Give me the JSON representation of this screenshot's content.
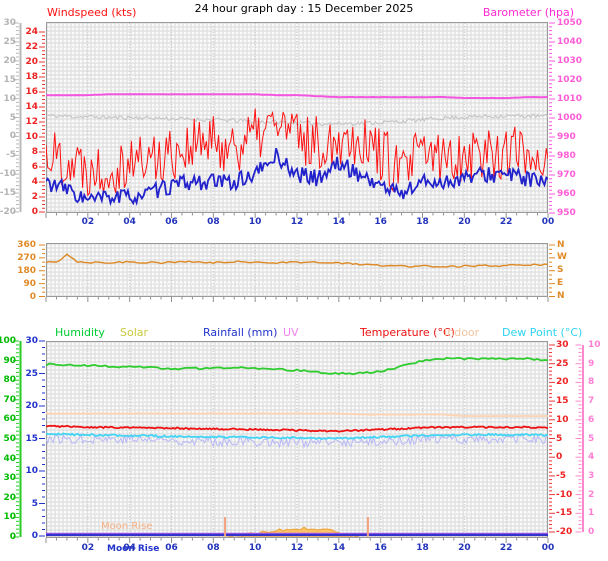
{
  "title": "24 hour graph day : 15 December 2025",
  "panels": {
    "wind": {
      "left_label": "Windspeed (kts)",
      "right_label": "Barometer (hpa)"
    }
  },
  "legend": [
    {
      "label": "Humidity",
      "color": "#00cc33"
    },
    {
      "label": "Solar",
      "color": "#c9c93a"
    },
    {
      "label": "Rainfall (mm)",
      "color": "#2233cc"
    },
    {
      "label": "UV",
      "color": "#ee82ee"
    },
    {
      "label": "Temperature (°C)",
      "color": "#ee1111"
    },
    {
      "label": "Indoor",
      "color": "#f2c6a0"
    },
    {
      "label": "Dew Point (°C)",
      "color": "#2fd4f0"
    }
  ],
  "annotations": {
    "moon_rise_plot": "Moon Rise",
    "moon_rise_axis": "Moon Rise"
  },
  "axes": {
    "hours": [
      "02",
      "04",
      "06",
      "08",
      "10",
      "12",
      "14",
      "16",
      "18",
      "20",
      "22",
      "00"
    ],
    "gray_left": [
      "30",
      "25",
      "20",
      "15",
      "10",
      "5",
      "0",
      "-5",
      "-10",
      "-15",
      "-20"
    ],
    "wind_left": [
      "24",
      "22",
      "20",
      "18",
      "16",
      "14",
      "12",
      "10",
      "8",
      "6",
      "4",
      "2",
      "0"
    ],
    "barometer": [
      "1050",
      "1040",
      "1030",
      "1020",
      "1010",
      "1000",
      "990",
      "980",
      "970",
      "960",
      "950"
    ],
    "direction": [
      "360",
      "270",
      "180",
      "90",
      "0"
    ],
    "compass": [
      "N",
      "W",
      "S",
      "E",
      "N"
    ],
    "humidity": [
      "100",
      "90",
      "80",
      "70",
      "60",
      "50",
      "40",
      "30",
      "20",
      "10",
      "0"
    ],
    "rainfall": [
      "30",
      "25",
      "20",
      "15",
      "10",
      "5",
      "0"
    ],
    "temperature": [
      "30",
      "25",
      "20",
      "15",
      "10",
      "5",
      "0",
      "-5",
      "-10",
      "-15",
      "-20"
    ],
    "uv": [
      "10",
      "9",
      "8",
      "7",
      "6",
      "5",
      "4",
      "3",
      "2",
      "1",
      "0"
    ]
  },
  "chart_data": [
    {
      "type": "line",
      "title": "Windspeed / Barometer",
      "x_range_hours": [
        0,
        24
      ],
      "axis_ranges": {
        "windspeed_kts": [
          0,
          24
        ],
        "gray_scale": [
          -20,
          30
        ],
        "barometer_hpa": [
          950,
          1050
        ]
      },
      "series": [
        {
          "name": "gray_trace",
          "color": "#c2c2c2",
          "axis": "gray",
          "values": [
            5.5,
            5.3,
            5.2,
            5.0,
            5.0,
            4.9,
            4.7,
            4.5,
            4.4,
            4.2,
            4.0,
            3.8,
            3.6,
            3.4,
            3.4,
            3.5,
            3.7,
            4.0,
            4.4,
            4.9,
            5.1,
            5.3,
            5.4,
            5.4,
            5.3
          ],
          "noise": 0.55
        },
        {
          "name": "wind_gust_kts",
          "color": "#ff1111",
          "axis": "wind",
          "values": [
            8,
            7,
            6,
            6,
            7,
            7,
            8,
            9,
            9,
            9,
            10,
            12,
            10,
            9,
            10,
            10,
            8,
            5,
            8,
            7,
            8,
            8,
            8,
            8,
            7
          ],
          "noise": 3.8
        },
        {
          "name": "wind_avg_kts",
          "color": "#2222cc",
          "axis": "wind",
          "values": [
            4,
            3,
            1.5,
            2,
            2,
            2.5,
            3.5,
            4,
            4,
            4,
            5,
            7.5,
            5,
            4.5,
            6.5,
            5,
            3.5,
            2.5,
            4,
            4,
            4.5,
            5,
            5,
            4.5,
            3.5
          ],
          "noise": 1.1
        },
        {
          "name": "barometer_hpa",
          "color": "#f455e0",
          "axis": "baro",
          "values": [
            1012,
            1012,
            1012,
            1012.5,
            1012.5,
            1012.5,
            1012.5,
            1012.5,
            1012.5,
            1012.5,
            1012.5,
            1012,
            1012,
            1011.5,
            1011,
            1011,
            1011,
            1011,
            1011,
            1011,
            1010.5,
            1010.5,
            1010.5,
            1011,
            1011
          ],
          "noise": 0.06
        }
      ]
    },
    {
      "type": "line",
      "title": "Wind Direction",
      "x_range_hours": [
        0,
        24
      ],
      "axis_ranges": {
        "direction_deg": [
          0,
          360
        ]
      },
      "series": [
        {
          "name": "wind_direction_deg",
          "color": "#dd8822",
          "axis": "dir",
          "values": [
            240,
            238,
            296,
            244,
            238,
            241,
            237,
            240,
            242,
            238,
            240,
            237,
            239,
            243,
            240,
            238,
            236,
            239,
            241,
            244,
            240,
            238,
            237,
            239,
            241,
            238,
            240,
            236,
            233,
            230,
            226,
            221,
            217,
            214,
            213,
            212,
            214,
            211,
            213,
            210,
            212,
            214,
            215,
            213,
            216,
            218,
            220,
            222,
            221
          ],
          "noise": 6
        }
      ]
    },
    {
      "type": "line",
      "title": "Humidity / Solar / Rainfall / UV / Temperature / Indoor / Dew Point",
      "x_range_hours": [
        0,
        24
      ],
      "axis_ranges": {
        "humidity_pct": [
          0,
          100
        ],
        "rainfall_mm": [
          0,
          30
        ],
        "temperature_c": [
          -20,
          30
        ],
        "uv_index": [
          0,
          10
        ]
      },
      "series": [
        {
          "name": "solar",
          "color": "#f0a840",
          "axis": "rain",
          "area": true,
          "values": [
            0,
            0,
            0,
            0,
            0,
            0,
            0,
            0,
            0,
            0.05,
            0.6,
            1.0,
            1.5,
            1.4,
            0.7,
            0,
            0,
            0,
            0,
            0,
            0,
            0,
            0,
            0,
            0
          ],
          "noise": 0.3
        },
        {
          "name": "wind_chill_c",
          "color": "#b8b8f8",
          "axis": "temp",
          "values": [
            5,
            4.8,
            5,
            4.9,
            4.8,
            4.7,
            4.6,
            4.4,
            4.3,
            4.3,
            4.2,
            4.0,
            4.0,
            3.9,
            3.9,
            4.0,
            4.2,
            4.5,
            4.7,
            4.8,
            4.8,
            4.8,
            4.8,
            4.8,
            4.7
          ],
          "noise": 1.3
        },
        {
          "name": "indoor_c",
          "color": "#ffd2b0",
          "axis": "temp",
          "values": [
            11.7,
            11.7,
            11.7,
            11.7,
            11.7,
            11.7,
            11.7,
            11.7,
            11.7,
            11.7,
            11.7,
            11.7,
            11.7,
            11.7,
            11.7,
            11.4,
            11.4,
            11.4,
            11.4,
            11.4,
            11,
            11,
            11,
            11,
            11
          ],
          "noise": 0.04
        },
        {
          "name": "uv_index",
          "color": "#a055e8",
          "axis": "uv",
          "values": [
            0,
            0,
            0,
            0,
            0,
            0,
            0,
            0,
            0,
            0,
            0,
            0,
            0,
            0,
            0,
            0,
            0,
            0,
            0,
            0,
            0,
            0,
            0,
            0,
            0
          ],
          "noise": 0
        },
        {
          "name": "rainfall_mm",
          "color": "#3333cc",
          "axis": "rain",
          "values": [
            0,
            0,
            0,
            0,
            0,
            0,
            0,
            0,
            0,
            0,
            0,
            0,
            0,
            0,
            0,
            0,
            0,
            0,
            0,
            0,
            0,
            0,
            0,
            0,
            0
          ],
          "noise": 0
        },
        {
          "name": "humidity_pct",
          "color": "#2ecc2e",
          "axis": "hum",
          "values": [
            88,
            88,
            87.5,
            87,
            87,
            86.5,
            86,
            86,
            86,
            86.5,
            86,
            85.5,
            85,
            84,
            83.5,
            83.5,
            84.5,
            87,
            90,
            91,
            91,
            91,
            91,
            91,
            90
          ],
          "noise": 0.5
        },
        {
          "name": "temperature_c",
          "color": "#ee1111",
          "axis": "temp",
          "values": [
            8.3,
            8.2,
            8,
            8,
            7.9,
            7.8,
            7.8,
            7.6,
            7.5,
            7.5,
            7.4,
            7.3,
            7.2,
            7,
            7,
            7.2,
            7.4,
            7.6,
            7.9,
            8,
            8,
            8,
            8,
            8,
            7.9
          ],
          "noise": 0.2
        },
        {
          "name": "dew_point_c",
          "color": "#44d4f4",
          "axis": "temp",
          "values": [
            6.2,
            6.1,
            6,
            5.9,
            5.8,
            5.7,
            5.6,
            5.5,
            5.4,
            5.4,
            5.3,
            5.2,
            5.2,
            5,
            5,
            5.2,
            5.4,
            5.6,
            5.8,
            5.9,
            6,
            6,
            6,
            6,
            5.9
          ],
          "noise": 0.25
        }
      ],
      "moon_markers_hours": [
        8.56,
        15.39
      ]
    }
  ]
}
